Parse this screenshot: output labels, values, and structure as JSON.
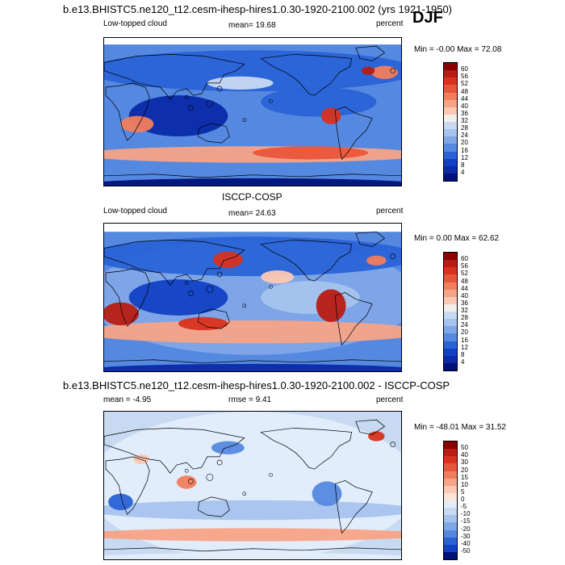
{
  "header": {
    "title": "b.e13.BHISTC5.ne120_t12.cesm-ihesp-hires1.0.30-1920-2100.002 (yrs 1921-1950)",
    "season": "DJF"
  },
  "panels": [
    {
      "id": "model",
      "variable": "Low-topped cloud",
      "stat_text": "mean=  19.68",
      "units": "percent",
      "minmax": "Min =  -0.00 Max =  72.08",
      "levels": [
        "60",
        "56",
        "52",
        "48",
        "44",
        "40",
        "36",
        "32",
        "28",
        "24",
        "20",
        "16",
        "12",
        "8",
        "4"
      ]
    },
    {
      "id": "obs",
      "heading": "ISCCP-COSP",
      "variable": "Low-topped cloud",
      "stat_text": "mean=  24.63",
      "units": "percent",
      "minmax": "Min =   0.00 Max =  62.62",
      "levels": [
        "60",
        "56",
        "52",
        "48",
        "44",
        "40",
        "36",
        "32",
        "28",
        "24",
        "20",
        "16",
        "12",
        "8",
        "4"
      ]
    },
    {
      "id": "diff",
      "heading": "b.e13.BHISTC5.ne120_t12.cesm-ihesp-hires1.0.30-1920-2100.002 - ISCCP-COSP",
      "mean_text": "mean =  -4.95",
      "rmse_text": "rmse =   9.41",
      "units": "percent",
      "minmax": "Min = -48.01 Max =  31.52",
      "levels": [
        "50",
        "40",
        "30",
        "20",
        "15",
        "10",
        "5",
        "0",
        "-5",
        "-10",
        "-15",
        "-20",
        "-30",
        "-40",
        "-50"
      ]
    }
  ],
  "colors": {
    "abs_scale": [
      "#8b0000",
      "#b81c12",
      "#d8311f",
      "#e8563a",
      "#f27d5c",
      "#f7a386",
      "#fbc8b4",
      "#f4eee8",
      "#c8daf2",
      "#a6c3ee",
      "#7fa7e8",
      "#5589e0",
      "#2a63d6",
      "#1240c4",
      "#0a2aa8",
      "#00127a"
    ],
    "diff_scale": [
      "#8b0000",
      "#b81c12",
      "#d8311f",
      "#e8563a",
      "#f27d5c",
      "#f7a386",
      "#fbc8b4",
      "#fde4d8",
      "#e4eefb",
      "#c8daf2",
      "#a6c3ee",
      "#7fa7e8",
      "#5589e0",
      "#2a63d6",
      "#1240c4",
      "#00127a"
    ],
    "map_bg": "#ffffff",
    "coast": "#000000"
  }
}
